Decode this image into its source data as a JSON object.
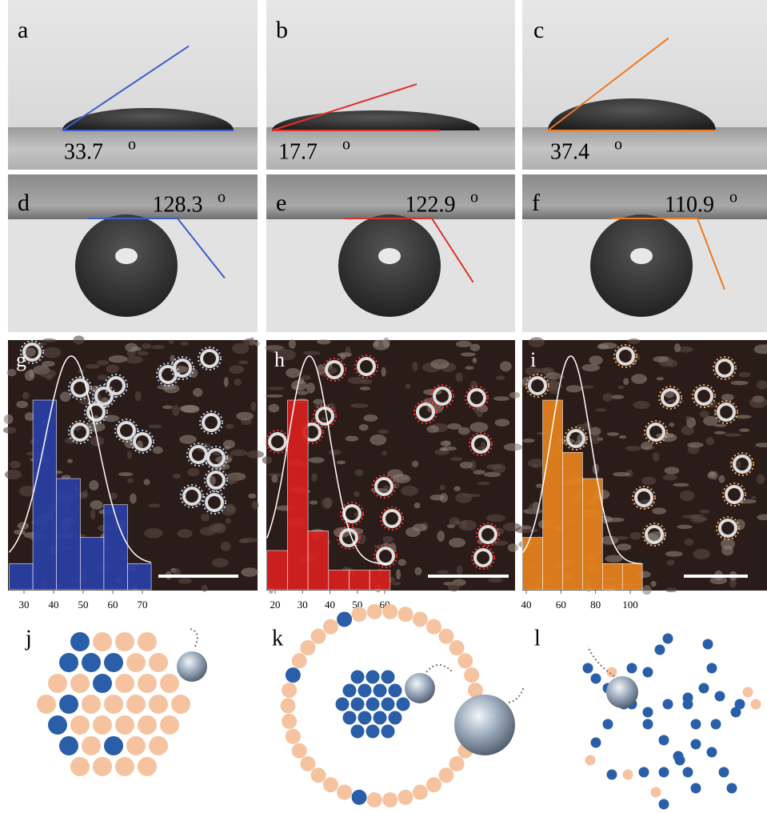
{
  "images": [
    {
      "label": "a",
      "angle": 33.7,
      "degree": "o"
    },
    {
      "label": "b",
      "angle": 17.7,
      "degree": "o"
    },
    {
      "label": "c",
      "angle": 37.4,
      "degree": "o"
    },
    {
      "label": "d",
      "angle": 128.3,
      "degree": "o"
    },
    {
      "label": "e",
      "angle": 122.9,
      "degree": "o"
    },
    {
      "label": "f",
      "angle": 110.9,
      "degree": "o"
    }
  ],
  "chart_data": [
    {
      "type": "histogram",
      "label": "g",
      "color": "#2b3fa6",
      "bins": [
        25,
        33,
        41,
        49,
        57,
        65,
        73
      ],
      "values": [
        4,
        29,
        17,
        8,
        13,
        4
      ],
      "xticks": [
        30,
        40,
        50,
        60,
        70
      ]
    },
    {
      "type": "histogram",
      "label": "h",
      "color": "#d9201e",
      "bins": [
        17,
        24.5,
        32,
        39.5,
        47,
        54.5,
        62
      ],
      "values": [
        6,
        29,
        9,
        3,
        3,
        3
      ],
      "xticks": [
        20,
        30,
        40,
        50,
        60
      ]
    },
    {
      "type": "histogram",
      "label": "i",
      "color": "#e8821e",
      "bins": [
        38,
        49.5,
        61,
        72.5,
        84,
        95.5,
        107
      ],
      "values": [
        8,
        29,
        21,
        17,
        4,
        4
      ],
      "xticks": [
        40,
        60,
        80,
        100
      ]
    }
  ],
  "diagrams": [
    {
      "label": "j"
    },
    {
      "label": "k"
    },
    {
      "label": "l"
    }
  ]
}
